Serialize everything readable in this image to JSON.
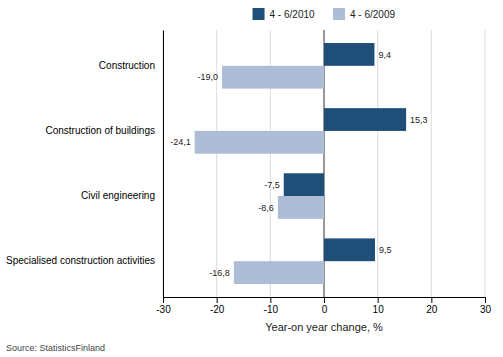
{
  "chart_data": {
    "type": "bar",
    "orientation": "horizontal",
    "categories": [
      "Construction",
      "Construction of buildings",
      "Civil engineering",
      "Specialised construction activities"
    ],
    "series": [
      {
        "name": "4 - 6/2010",
        "color": "#1F4E79",
        "values": [
          9.4,
          15.3,
          -7.5,
          9.5
        ],
        "value_labels": [
          "9,4",
          "15,3",
          "-7,5",
          "9,5"
        ]
      },
      {
        "name": "4 - 6/2009",
        "color": "#ADBDD6",
        "values": [
          -19.0,
          -24.1,
          -8.6,
          -16.8
        ],
        "value_labels": [
          "-19,0",
          "-24,1",
          "-8,6",
          "-16,8"
        ]
      }
    ],
    "xlabel": "Year-on year change, %",
    "xlim": [
      -30,
      30
    ],
    "xticks": [
      -30,
      -20,
      -10,
      0,
      10,
      20,
      30
    ],
    "grid": true,
    "legend": "top",
    "data_labels": true,
    "annotations": [
      "Source: StatisticsFinland"
    ]
  }
}
